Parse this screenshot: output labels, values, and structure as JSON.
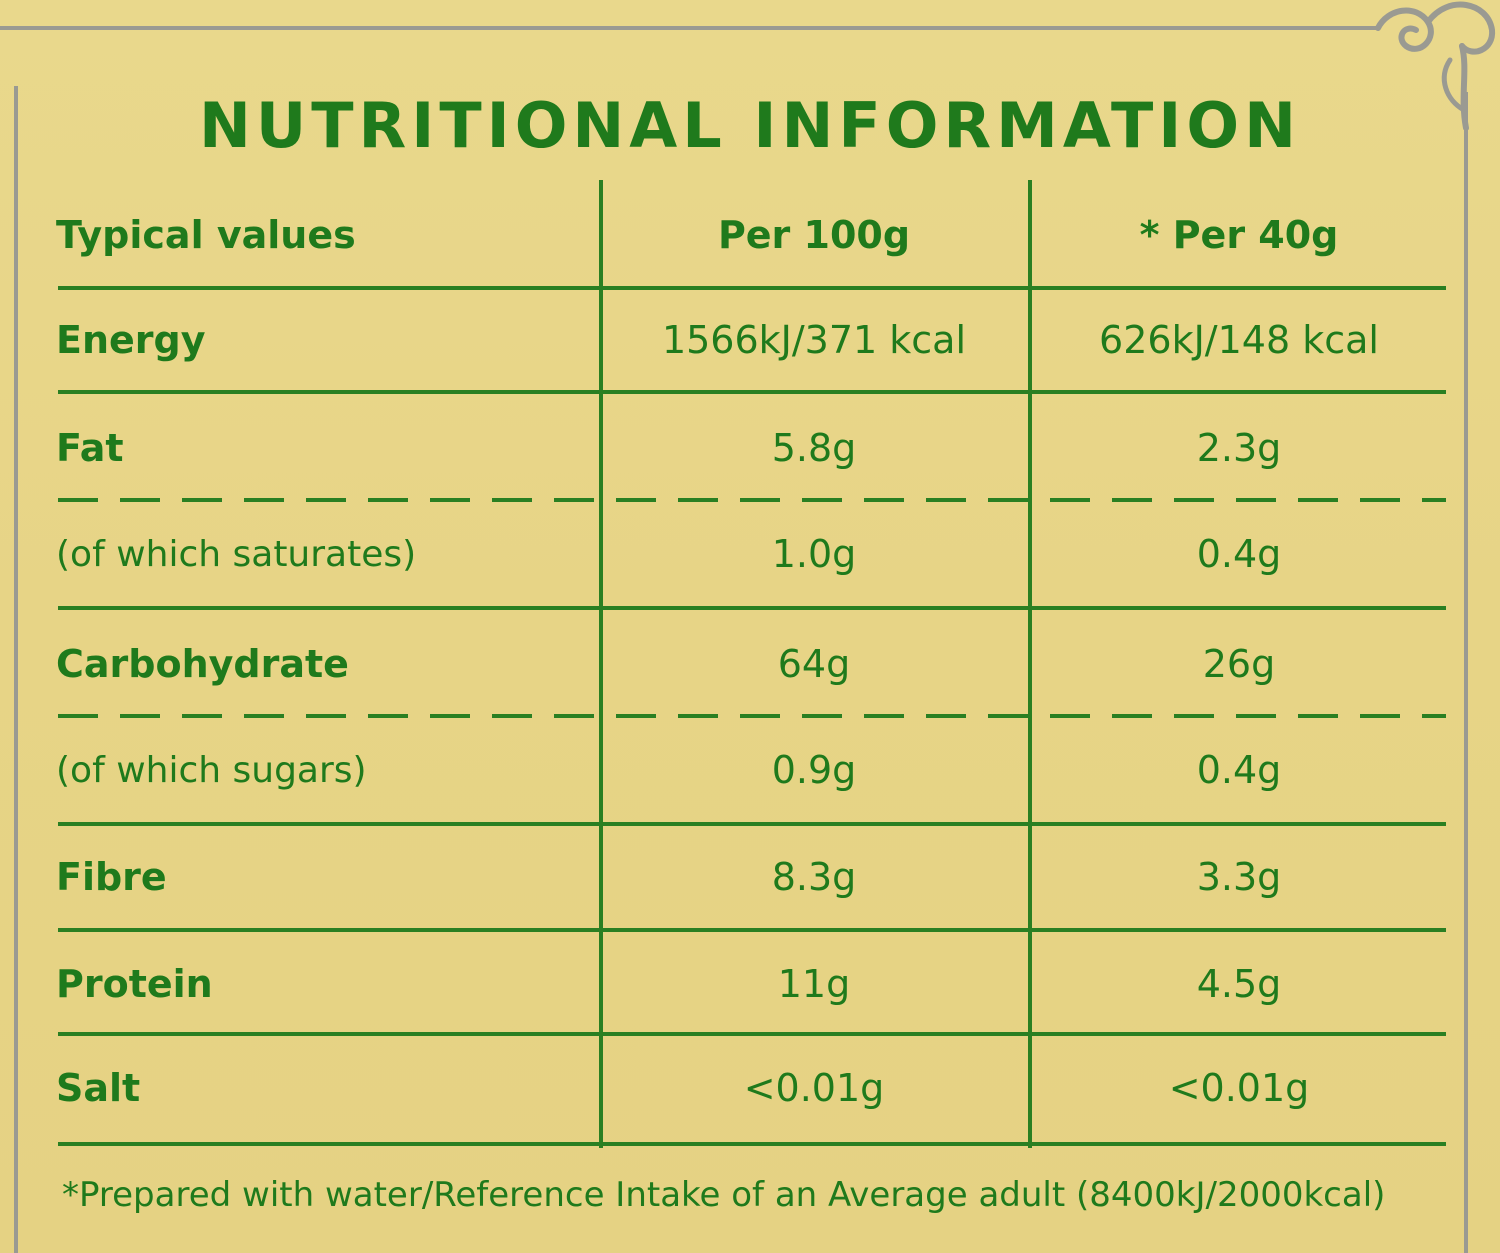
{
  "title": "NUTRITIONAL INFORMATION",
  "table": {
    "headers": [
      "Typical values",
      "Per 100g",
      "* Per 40g"
    ],
    "rows": [
      {
        "label": "Energy",
        "per100g": "1566kJ/371 kcal",
        "per40g": "626kJ/148 kcal"
      },
      {
        "label": "Fat",
        "per100g": "5.8g",
        "per40g": "2.3g"
      },
      {
        "label": "(of which saturates)",
        "per100g": "1.0g",
        "per40g": "0.4g"
      },
      {
        "label": "Carbohydrate",
        "per100g": "64g",
        "per40g": "26g"
      },
      {
        "label": "(of which sugars)",
        "per100g": "0.9g",
        "per40g": "0.4g"
      },
      {
        "label": "Fibre",
        "per100g": "8.3g",
        "per40g": "3.3g"
      },
      {
        "label": "Protein",
        "per100g": "11g",
        "per40g": "4.5g"
      },
      {
        "label": "Salt",
        "per100g": "<0.01g",
        "per40g": "<0.01g"
      }
    ]
  },
  "footnote": "*Prepared with water/Reference Intake of an Average adult (8400kJ/2000kcal)",
  "colors": {
    "text": "#1f7a1c",
    "rule": "#2a7f22",
    "background": "#e7d589",
    "frame": "#9a9a92"
  }
}
